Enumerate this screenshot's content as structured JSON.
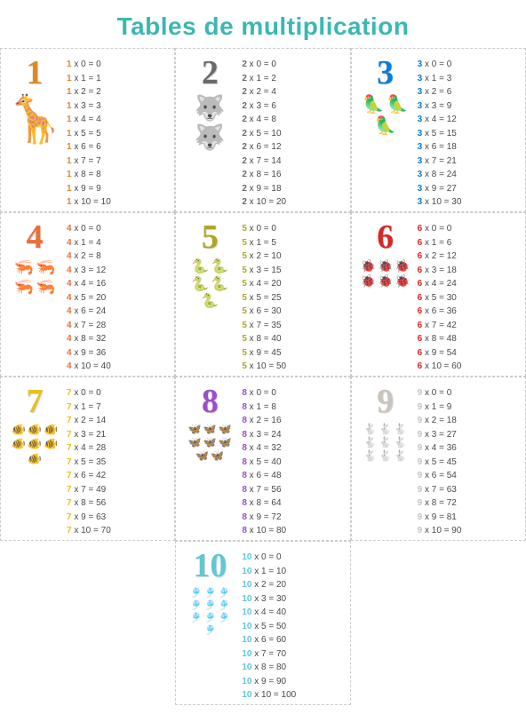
{
  "title": "Tables de multiplication",
  "title_color": "#3bb8b0",
  "border_color": "#cccccc",
  "text_color": "#4a4a4a",
  "background_color": "#ffffff",
  "tables": [
    {
      "number": 1,
      "color": "#d98b2b",
      "animal_glyph": "🦒",
      "animal_name": "giraffe",
      "count": 1,
      "glyph_size": 52
    },
    {
      "number": 2,
      "color": "#6b6b6b",
      "animal_glyph": "🐺",
      "animal_name": "wolf",
      "count": 2,
      "glyph_size": 28
    },
    {
      "number": 3,
      "color": "#0b7bd6",
      "animal_glyph": "🦜",
      "animal_name": "parrot",
      "count": 3,
      "glyph_size": 20
    },
    {
      "number": 4,
      "color": "#e8703a",
      "animal_glyph": "🦐",
      "animal_name": "shrimp",
      "count": 4,
      "glyph_size": 18
    },
    {
      "number": 5,
      "color": "#b0a52a",
      "animal_glyph": "🐍",
      "animal_name": "eel",
      "count": 5,
      "glyph_size": 16
    },
    {
      "number": 6,
      "color": "#d62828",
      "animal_glyph": "🐞",
      "animal_name": "ladybug",
      "count": 6,
      "glyph_size": 14
    },
    {
      "number": 7,
      "color": "#e6c21f",
      "animal_glyph": "🐠",
      "animal_name": "fish",
      "count": 7,
      "glyph_size": 13
    },
    {
      "number": 8,
      "color": "#9b4fc7",
      "animal_glyph": "🦋",
      "animal_name": "butterfly",
      "count": 8,
      "glyph_size": 12
    },
    {
      "number": 9,
      "color": "#c9c4bd",
      "animal_glyph": "🐇",
      "animal_name": "rabbit",
      "count": 9,
      "glyph_size": 12
    },
    {
      "number": 10,
      "color": "#5fc8d6",
      "animal_glyph": "🎐",
      "animal_name": "jellyfish",
      "count": 10,
      "glyph_size": 11
    }
  ],
  "multipliers": [
    0,
    1,
    2,
    3,
    4,
    5,
    6,
    7,
    8,
    9,
    10
  ]
}
